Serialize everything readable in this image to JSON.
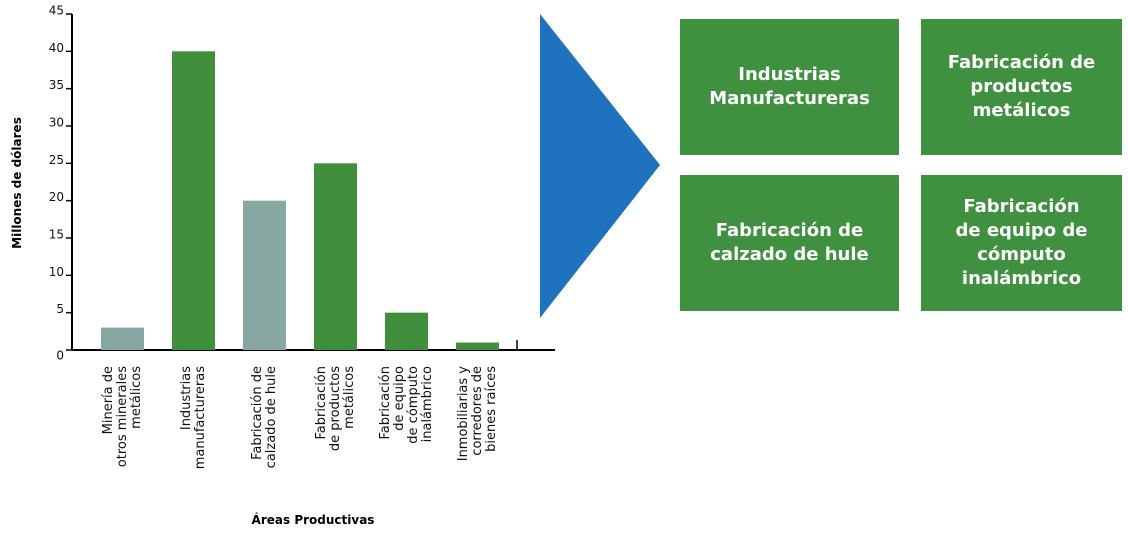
{
  "chart_data": {
    "type": "bar",
    "y_label": "Millones de dólares",
    "x_label": "Áreas Productivas",
    "categories": [
      "Minería de\notros minerales\nmetálicos",
      "Industrias\nmanufactureras",
      "Fabricación de\ncalzado de hule",
      "Fabricación\nde productos\nmetálicos",
      "Fabricación\nde equipo\nde cómputo\ninalámbrico",
      "Inmobiliarias y\ncorredores de\nbienes raíces"
    ],
    "values": [
      3,
      40,
      20,
      25,
      5,
      1
    ],
    "colors": [
      "#87a8a2",
      "#3f8f3c",
      "#87a8a2",
      "#3f8f3c",
      "#3f8f3c",
      "#3f8f3c"
    ],
    "ylim": [
      0,
      45
    ],
    "yticks": [
      0,
      5,
      10,
      15,
      20,
      25,
      30,
      35,
      40,
      45
    ],
    "grid": false
  },
  "diagram": {
    "arrow_color": "#1f72bd",
    "box_color": "#3f9140",
    "boxes": [
      "Industrias\nManufactureras",
      "Fabricación de\nproductos\nmetálicos",
      "Fabricación de\ncalzado de hule",
      "Fabricación\nde equipo de\ncómputo\ninalámbrico"
    ]
  }
}
